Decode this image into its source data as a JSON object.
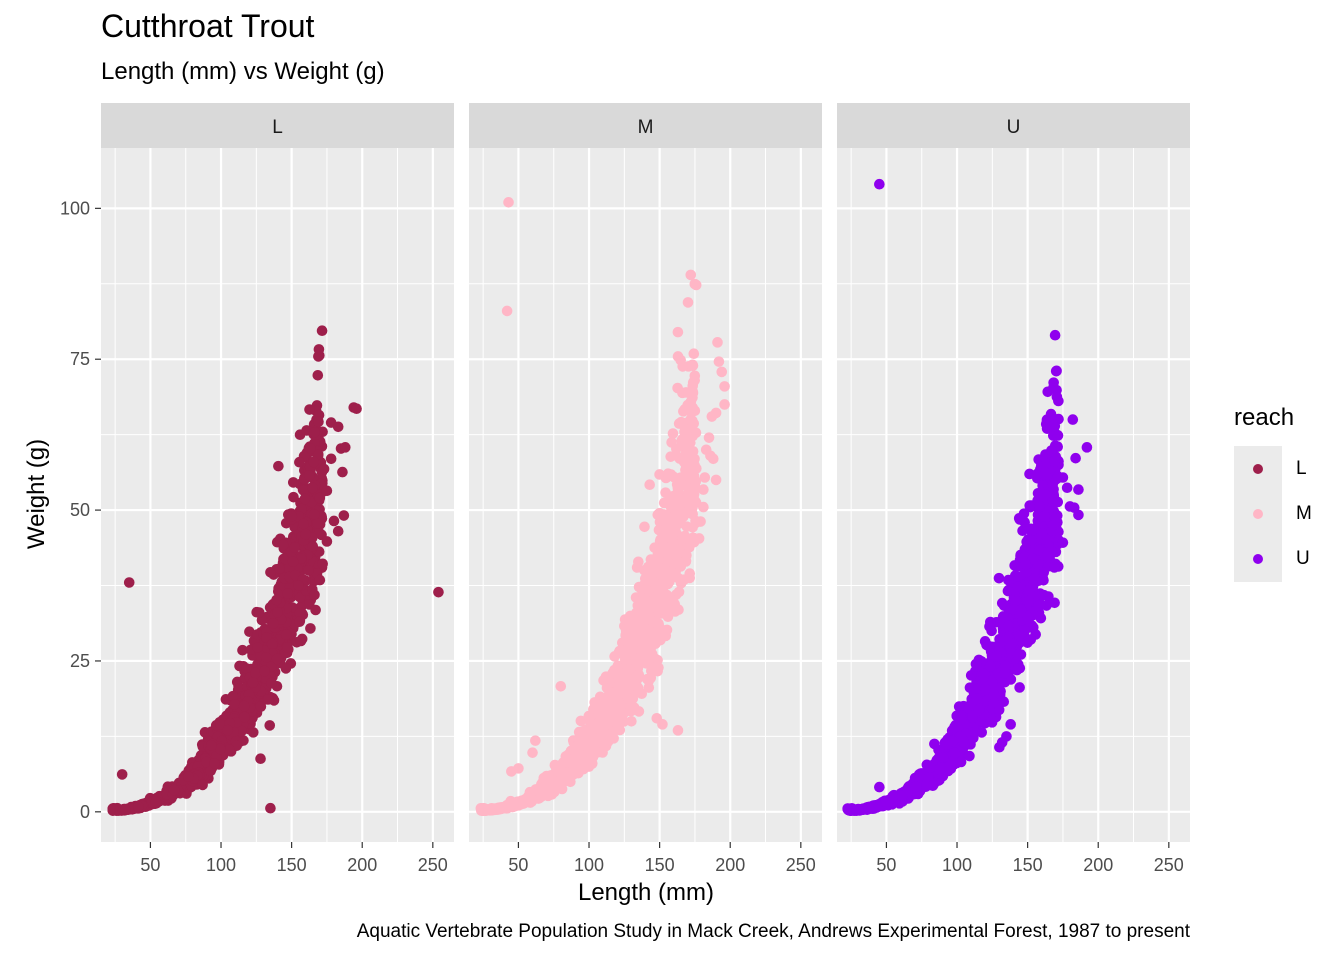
{
  "title": "Cutthroat Trout",
  "subtitle": "Length (mm) vs Weight (g)",
  "caption": "Aquatic Vertebrate Population Study in Mack Creek, Andrews Experimental Forest, 1987 to present",
  "legend": {
    "title": "reach",
    "items": [
      {
        "label": "L",
        "color": "#9E1F4B"
      },
      {
        "label": "M",
        "color": "#FFB6C6"
      },
      {
        "label": "U",
        "color": "#8F00EE"
      }
    ]
  },
  "chart_data": {
    "type": "scatter",
    "xlabel": "Length (mm)",
    "ylabel": "Weight (g)",
    "xlim": [
      15,
      265
    ],
    "ylim": [
      -5,
      110
    ],
    "x_ticks": [
      50,
      100,
      150,
      200,
      250
    ],
    "y_ticks": [
      0,
      25,
      50,
      75,
      100
    ],
    "grid": true,
    "legend_position": "right",
    "facets": [
      {
        "label": "L",
        "color": "#9E1F4B",
        "points": [
          [
            30,
            6.2
          ],
          [
            35,
            38
          ],
          [
            135,
            0.6
          ],
          [
            128,
            8.8
          ],
          [
            254,
            36.4
          ],
          [
            178,
            64.5
          ],
          [
            183,
            63.8
          ],
          [
            194,
            67
          ],
          [
            196,
            66.8
          ],
          [
            185,
            60.2
          ],
          [
            188,
            60.4
          ],
          [
            186,
            56.3
          ],
          [
            178,
            58.5
          ],
          [
            173,
            56.8
          ],
          [
            175,
            53.2
          ],
          [
            170,
            52
          ],
          [
            166,
            49.3
          ],
          [
            187,
            49.1
          ],
          [
            180,
            48.2
          ],
          [
            183,
            46.5
          ],
          [
            175,
            44.8
          ],
          [
            172,
            41.1
          ],
          [
            160,
            46
          ],
          [
            165,
            44
          ],
          [
            168,
            39.5
          ],
          [
            170,
            38.4
          ],
          [
            162,
            40
          ],
          [
            158,
            38.5
          ],
          [
            155,
            37.5
          ]
        ],
        "curve": {
          "x_from": 22,
          "x_to": 172,
          "a": 1.12e-05,
          "b": 3.0,
          "spread": 0.16
        }
      },
      {
        "label": "M",
        "color": "#FFB6C6",
        "points": [
          [
            43,
            101
          ],
          [
            42,
            83
          ],
          [
            191,
            77.8
          ],
          [
            192,
            74.6
          ],
          [
            194,
            72.9
          ],
          [
            196,
            70.5
          ],
          [
            196,
            67.5
          ],
          [
            190,
            66.1
          ],
          [
            187,
            65.5
          ],
          [
            185,
            62
          ],
          [
            183,
            60
          ],
          [
            186,
            59
          ],
          [
            188,
            58.5
          ],
          [
            190,
            55
          ],
          [
            182,
            55.4
          ],
          [
            181,
            53.4
          ],
          [
            181,
            50.5
          ],
          [
            179,
            48.1
          ],
          [
            178,
            45.3
          ],
          [
            163,
            13.5
          ],
          [
            152,
            14.5
          ],
          [
            148,
            15.5
          ],
          [
            130,
            15
          ],
          [
            118,
            23.5
          ],
          [
            102,
            14.5
          ],
          [
            100,
            7.5
          ],
          [
            80,
            20.8
          ],
          [
            62,
            11.8
          ],
          [
            60,
            9.8
          ],
          [
            50,
            7.2
          ],
          [
            45,
            6.7
          ]
        ],
        "curve": {
          "x_from": 22,
          "x_to": 176,
          "a": 1.12e-05,
          "b": 3.0,
          "spread": 0.17
        }
      },
      {
        "label": "U",
        "color": "#8F00EE",
        "points": [
          [
            45,
            104
          ],
          [
            182,
            65
          ],
          [
            192,
            60.4
          ],
          [
            184,
            58.6
          ],
          [
            186,
            53.4
          ],
          [
            175,
            55.4
          ],
          [
            178,
            53.7
          ],
          [
            180,
            50.6
          ],
          [
            183,
            50.4
          ],
          [
            186,
            49.2
          ],
          [
            170,
            48.6
          ],
          [
            162,
            49
          ],
          [
            168,
            47.5
          ],
          [
            172,
            45
          ],
          [
            175,
            44.6
          ],
          [
            123,
            30.7
          ],
          [
            138,
            14.5
          ],
          [
            135,
            12.5
          ],
          [
            132,
            11.5
          ],
          [
            130,
            10.7
          ],
          [
            45,
            4.1
          ]
        ],
        "curve": {
          "x_from": 22,
          "x_to": 172,
          "a": 1.12e-05,
          "b": 3.0,
          "spread": 0.16
        }
      }
    ]
  }
}
